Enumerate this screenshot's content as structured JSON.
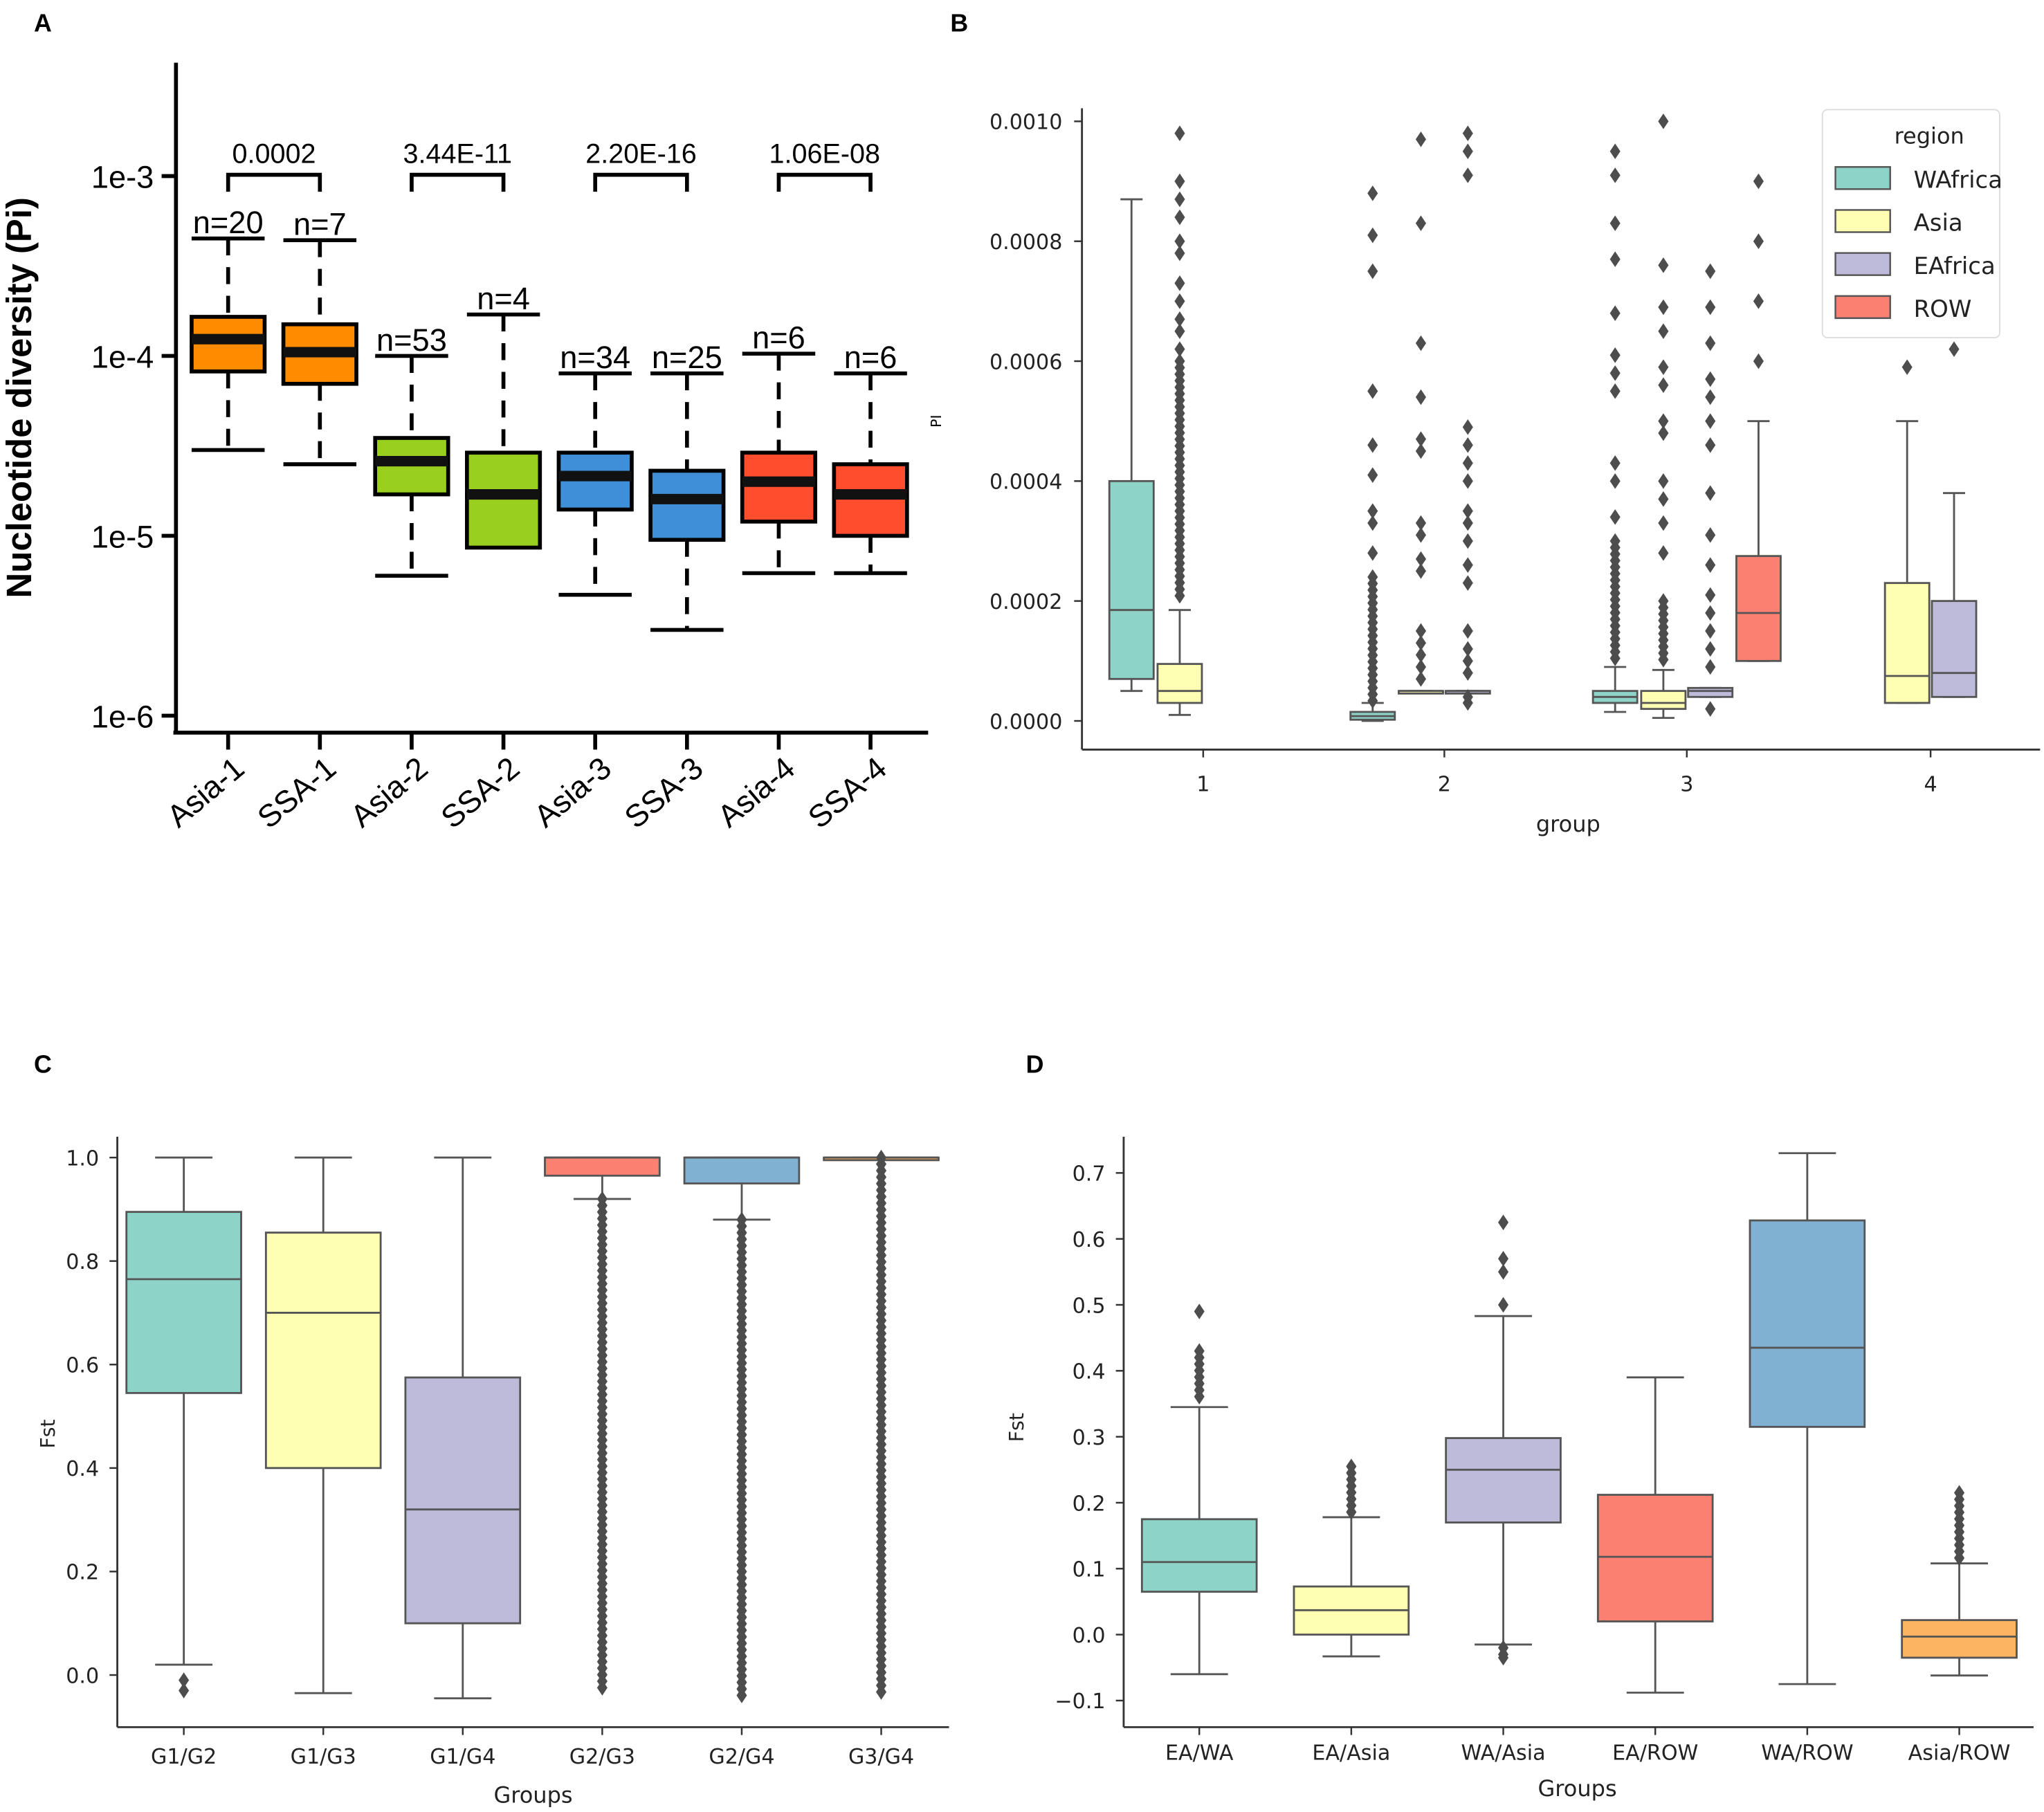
{
  "panels": {
    "A": {
      "letter": "A",
      "chart_data": {
        "type": "box",
        "yscale": "log",
        "ylabel": "Nucleotide diversity (Pi)",
        "yticks": [
          {
            "v": 0.001,
            "label": "1e-3"
          },
          {
            "v": 0.0001,
            "label": "1e-4"
          },
          {
            "v": 1e-05,
            "label": "1e-5"
          },
          {
            "v": 1e-06,
            "label": "1e-6"
          }
        ],
        "categories": [
          "Asia-1",
          "SSA-1",
          "Asia-2",
          "SSA-2",
          "Asia-3",
          "SSA-3",
          "Asia-4",
          "SSA-4"
        ],
        "n_labels": [
          "n=20",
          "n=7",
          "n=53",
          "n=4",
          "n=34",
          "n=25",
          "n=6",
          "n=6"
        ],
        "colors": [
          "#ff8c00",
          "#ff8c00",
          "#99d01f",
          "#99d01f",
          "#3f8fd8",
          "#3f8fd8",
          "#ff4d2e",
          "#ff4d2e"
        ],
        "boxes": [
          {
            "lo": 3e-05,
            "q1": 8.2e-05,
            "med": 0.000124,
            "q3": 0.000165,
            "hi": 0.00045
          },
          {
            "lo": 2.5e-05,
            "q1": 7e-05,
            "med": 0.000105,
            "q3": 0.00015,
            "hi": 0.00044
          },
          {
            "lo": 6e-06,
            "q1": 1.7e-05,
            "med": 2.6e-05,
            "q3": 3.5e-05,
            "hi": 0.0001
          },
          {
            "lo": 8.6e-06,
            "q1": 8.6e-06,
            "med": 1.7e-05,
            "q3": 2.9e-05,
            "hi": 0.00017
          },
          {
            "lo": 4.7e-06,
            "q1": 1.4e-05,
            "med": 2.15e-05,
            "q3": 2.9e-05,
            "hi": 8e-05
          },
          {
            "lo": 3e-06,
            "q1": 9.5e-06,
            "med": 1.6e-05,
            "q3": 2.3e-05,
            "hi": 8e-05
          },
          {
            "lo": 6.2e-06,
            "q1": 1.2e-05,
            "med": 2e-05,
            "q3": 2.9e-05,
            "hi": 0.000103
          },
          {
            "lo": 6.2e-06,
            "q1": 1e-05,
            "med": 1.7e-05,
            "q3": 2.5e-05,
            "hi": 8e-05
          }
        ],
        "comparisons": [
          {
            "pair": [
              0,
              1
            ],
            "p": "0.0002"
          },
          {
            "pair": [
              2,
              3
            ],
            "p": "3.44E-11"
          },
          {
            "pair": [
              4,
              5
            ],
            "p": "2.20E-16"
          },
          {
            "pair": [
              6,
              7
            ],
            "p": "1.06E-08"
          }
        ]
      }
    },
    "B": {
      "letter": "B",
      "chart_data": {
        "type": "box",
        "yscale": "linear",
        "ylim": [
          0,
          0.001
        ],
        "xlabel": "group",
        "ylabel": "PI",
        "yticks": [
          {
            "v": 0,
            "label": "0.0000"
          },
          {
            "v": 0.0002,
            "label": "0.0002"
          },
          {
            "v": 0.0004,
            "label": "0.0004"
          },
          {
            "v": 0.0006,
            "label": "0.0006"
          },
          {
            "v": 0.0008,
            "label": "0.0008"
          },
          {
            "v": 0.001,
            "label": "0.0010"
          }
        ],
        "groups": [
          "1",
          "2",
          "3",
          "4"
        ],
        "legend": {
          "title": "region",
          "placement": "top-right",
          "entries": [
            {
              "label": "WAfrica",
              "color": "#8dd3c7"
            },
            {
              "label": "Asia",
              "color": "#ffffb3"
            },
            {
              "label": "EAfrica",
              "color": "#bebada"
            },
            {
              "label": "ROW",
              "color": "#fb8072"
            }
          ]
        },
        "boxes": [
          {
            "group": 0,
            "hue": 0,
            "lo": 5e-05,
            "q1": 7e-05,
            "med": 0.000185,
            "q3": 0.0004,
            "hi": 0.00087,
            "outliers": []
          },
          {
            "group": 0,
            "hue": 1,
            "lo": 1e-05,
            "q1": 3e-05,
            "med": 5e-05,
            "q3": 9.5e-05,
            "hi": 0.000185,
            "outliers": [
              0.00098,
              0.0009,
              0.00087,
              0.00084,
              0.0008,
              0.00078,
              0.00073,
              0.0007,
              0.00067,
              0.00065,
              0.00062
            ],
            "dense": [
              0.0002,
              0.0006
            ]
          },
          {
            "group": 1,
            "hue": 0,
            "lo": 0.0,
            "q1": 2e-06,
            "med": 8e-06,
            "q3": 1.5e-05,
            "hi": 3e-05,
            "outliers": [
              0.00088,
              0.00081,
              0.00075,
              0.00055,
              0.00046,
              0.00041,
              0.00035,
              0.00033,
              0.00028
            ],
            "dense": [
              3e-05,
              0.00024
            ]
          },
          {
            "group": 1,
            "hue": 1,
            "lo": 5e-05,
            "q1": 5e-05,
            "med": 5e-05,
            "q3": 5e-05,
            "hi": 5e-05,
            "outliers": [
              0.00097,
              0.00083,
              0.00063,
              0.00054,
              0.00047,
              0.00045,
              0.00033,
              0.00031,
              0.00027,
              0.00025,
              0.00015,
              0.00013,
              0.00011,
              9e-05,
              7e-05
            ]
          },
          {
            "group": 1,
            "hue": 2,
            "lo": 5e-05,
            "q1": 5e-05,
            "med": 5e-05,
            "q3": 5e-05,
            "hi": 5e-05,
            "outliers": [
              0.00098,
              0.00095,
              0.00091,
              0.00049,
              0.00046,
              0.00043,
              0.0004,
              0.00035,
              0.00033,
              0.0003,
              0.00026,
              0.00023,
              0.00015,
              0.00012,
              0.0001,
              8e-05,
              4e-05,
              3e-05
            ]
          },
          {
            "group": 2,
            "hue": 0,
            "lo": 1.5e-05,
            "q1": 3e-05,
            "med": 4e-05,
            "q3": 5e-05,
            "hi": 9e-05,
            "outliers": [
              0.00095,
              0.00091,
              0.00083,
              0.00077,
              0.00068,
              0.00061,
              0.00058,
              0.00055,
              0.00043,
              0.0004,
              0.00034
            ],
            "dense": [
              0.0001,
              0.0003
            ]
          },
          {
            "group": 2,
            "hue": 1,
            "lo": 5e-06,
            "q1": 2e-05,
            "med": 3e-05,
            "q3": 5e-05,
            "hi": 8.5e-05,
            "outliers": [
              0.001,
              0.00076,
              0.00069,
              0.00065,
              0.00059,
              0.00056,
              0.0005,
              0.00048,
              0.0004,
              0.00037,
              0.00033,
              0.00028
            ],
            "dense": [
              0.0001,
              0.0002
            ]
          },
          {
            "group": 2,
            "hue": 2,
            "lo": 4e-05,
            "q1": 4e-05,
            "med": 5e-05,
            "q3": 5.5e-05,
            "hi": 5.5e-05,
            "outliers": [
              0.00075,
              0.00069,
              0.00063,
              0.00057,
              0.00054,
              0.0005,
              0.00046,
              0.00038,
              0.00031,
              0.00026,
              0.00021,
              0.00018,
              0.00015,
              0.00012,
              9e-05,
              2e-05
            ]
          },
          {
            "group": 2,
            "hue": 3,
            "lo": 0.0001,
            "q1": 0.0001,
            "med": 0.00018,
            "q3": 0.000275,
            "hi": 0.0005,
            "outliers": [
              0.0009,
              0.0008,
              0.0007,
              0.0006
            ]
          },
          {
            "group": 3,
            "hue": 1,
            "lo": 3e-05,
            "q1": 3e-05,
            "med": 7.5e-05,
            "q3": 0.00023,
            "hi": 0.0005,
            "outliers": [
              0.00059
            ]
          },
          {
            "group": 3,
            "hue": 2,
            "lo": 4e-05,
            "q1": 4e-05,
            "med": 8e-05,
            "q3": 0.0002,
            "hi": 0.00038,
            "outliers": [
              0.00062
            ]
          }
        ]
      }
    },
    "C": {
      "letter": "C",
      "chart_data": {
        "type": "box",
        "yscale": "linear",
        "ylim": [
          -0.05,
          1.0
        ],
        "xlabel": "Groups",
        "ylabel": "Fst",
        "yticks": [
          {
            "v": 0,
            "label": "0.0"
          },
          {
            "v": 0.2,
            "label": "0.2"
          },
          {
            "v": 0.4,
            "label": "0.4"
          },
          {
            "v": 0.6,
            "label": "0.6"
          },
          {
            "v": 0.8,
            "label": "0.8"
          },
          {
            "v": 1.0,
            "label": "1.0"
          }
        ],
        "categories": [
          "G1/G2",
          "G1/G3",
          "G1/G4",
          "G2/G3",
          "G2/G4",
          "G3/G4"
        ],
        "colors": [
          "#8dd3c7",
          "#ffffb3",
          "#bebada",
          "#fb8072",
          "#80b1d3",
          "#fdb462"
        ],
        "boxes": [
          {
            "lo": 0.02,
            "q1": 0.545,
            "med": 0.765,
            "q3": 0.895,
            "hi": 1.0,
            "outliers": [
              -0.01,
              -0.03
            ]
          },
          {
            "lo": -0.035,
            "q1": 0.4,
            "med": 0.7,
            "q3": 0.855,
            "hi": 1.0,
            "outliers": []
          },
          {
            "lo": -0.045,
            "q1": 0.1,
            "med": 0.32,
            "q3": 0.575,
            "hi": 1.0,
            "outliers": []
          },
          {
            "lo": 0.92,
            "q1": 0.965,
            "med": 1.0,
            "q3": 1.0,
            "hi": 1.0,
            "outliers": [],
            "dense": [
              -0.03,
              0.92
            ]
          },
          {
            "lo": 0.88,
            "q1": 0.95,
            "med": 1.0,
            "q3": 1.0,
            "hi": 1.0,
            "outliers": [],
            "dense": [
              -0.05,
              0.88
            ]
          },
          {
            "lo": 1.0,
            "q1": 1.0,
            "med": 1.0,
            "q3": 1.0,
            "hi": 1.0,
            "outliers": [],
            "dense": [
              -0.04,
              1.0
            ]
          }
        ]
      }
    },
    "D": {
      "letter": "D",
      "chart_data": {
        "type": "box",
        "yscale": "linear",
        "ylim": [
          -0.1,
          0.7
        ],
        "xlabel": "Groups",
        "ylabel": "Fst",
        "yticks": [
          {
            "v": -0.1,
            "label": "−0.1"
          },
          {
            "v": 0,
            "label": "0.0"
          },
          {
            "v": 0.1,
            "label": "0.1"
          },
          {
            "v": 0.2,
            "label": "0.2"
          },
          {
            "v": 0.3,
            "label": "0.3"
          },
          {
            "v": 0.4,
            "label": "0.4"
          },
          {
            "v": 0.5,
            "label": "0.5"
          },
          {
            "v": 0.6,
            "label": "0.6"
          },
          {
            "v": 0.7,
            "label": "0.7"
          }
        ],
        "categories": [
          "EA/WA",
          "EA/Asia",
          "WA/Asia",
          "EA/ROW",
          "WA/ROW",
          "Asia/ROW"
        ],
        "colors": [
          "#8dd3c7",
          "#ffffb3",
          "#bebada",
          "#fb8072",
          "#80b1d3",
          "#fdb462"
        ],
        "boxes": [
          {
            "lo": -0.06,
            "q1": 0.065,
            "med": 0.11,
            "q3": 0.175,
            "hi": 0.345,
            "outliers": [
              0.49
            ],
            "dense": [
              0.36,
              0.43
            ]
          },
          {
            "lo": -0.033,
            "q1": 0.0,
            "med": 0.037,
            "q3": 0.073,
            "hi": 0.178,
            "outliers": [],
            "dense": [
              0.18,
              0.255
            ]
          },
          {
            "lo": -0.015,
            "q1": 0.17,
            "med": 0.25,
            "q3": 0.298,
            "hi": 0.483,
            "outliers": [
              0.5,
              0.55,
              0.57,
              0.625,
              -0.02,
              -0.03,
              -0.035
            ]
          },
          {
            "lo": -0.088,
            "q1": 0.02,
            "med": 0.118,
            "q3": 0.212,
            "hi": 0.39,
            "outliers": []
          },
          {
            "lo": -0.075,
            "q1": 0.315,
            "med": 0.435,
            "q3": 0.628,
            "hi": 0.73,
            "outliers": []
          },
          {
            "lo": -0.062,
            "q1": -0.035,
            "med": -0.003,
            "q3": 0.022,
            "hi": 0.108,
            "outliers": [],
            "dense": [
              0.11,
              0.215
            ]
          }
        ]
      }
    }
  }
}
